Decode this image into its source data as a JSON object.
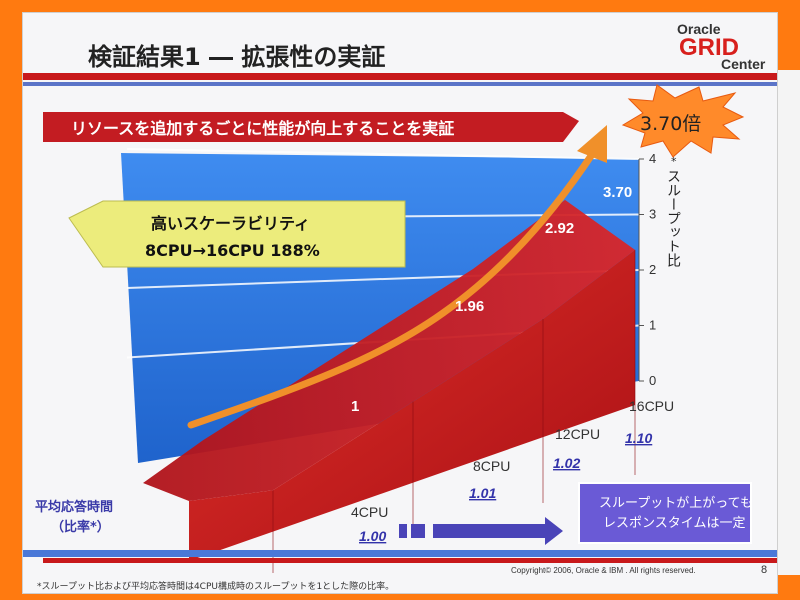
{
  "slide": {
    "title": "検証結果1 ― 拡張性の実証",
    "logo_line1": "Oracle",
    "logo_line2": "GRID",
    "logo_line3": "Center",
    "banner": "リソースを追加するごとに性能が向上することを実証",
    "callout_line1": "高いスケーラビリティ",
    "callout_line2": "8CPU→16CPU 188%",
    "starburst": "3.70倍",
    "response_note_line1": "スループットが上がっても",
    "response_note_line2": "レスポンスタイムは一定",
    "left_label_line1": "平均応答時間",
    "left_label_line2": "（比率*）",
    "footnote": "*スループット比および平均応答時間は4CPU構成時のスループットを1とした際の比率。",
    "copyright": "Copyright© 2006, Oracle & IBM . All rights reserved.",
    "page_number": "8"
  },
  "chart_data": {
    "type": "area",
    "title": "",
    "categories": [
      "4CPU",
      "8CPU",
      "12CPU",
      "16CPU"
    ],
    "series": [
      {
        "name": "スループット比",
        "values": [
          1,
          1.96,
          2.92,
          3.7
        ]
      },
      {
        "name": "平均応答時間（比率*）",
        "values": [
          1.0,
          1.01,
          1.02,
          1.1
        ]
      }
    ],
    "ylabel": "スループット比",
    "ylabel_prefix": "*",
    "yticks": [
      0,
      1,
      2,
      3,
      4
    ],
    "ylim": [
      0,
      4
    ],
    "grid": true,
    "colors": {
      "area": "#c8191b",
      "background": "#2c7be0",
      "arrow": "#f0902a",
      "response_text": "#3333aa",
      "banner": "#c31c22",
      "callout": "#ecec7c",
      "note_box": "#6a5ad6"
    }
  }
}
